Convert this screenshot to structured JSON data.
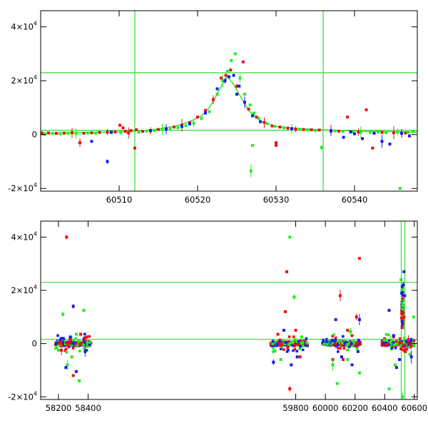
{
  "colors": {
    "red": "#ee1111",
    "green": "#22ee22",
    "blue": "#1a1aee",
    "frame": "#000000",
    "ref_line": "#33dd33"
  },
  "chart_data": [
    {
      "type": "scatter",
      "title": "",
      "xlabel": "",
      "ylabel": "",
      "xlim": [
        60500,
        60548
      ],
      "ylim": [
        -21000,
        46000
      ],
      "x_ticks": [
        60510,
        60520,
        60530,
        60540
      ],
      "y_ticks": [
        {
          "value": 40000,
          "base": "4×10",
          "exp": "4"
        },
        {
          "value": 20000,
          "base": "2×10",
          "exp": "4"
        },
        {
          "value": 0,
          "base": "0",
          "exp": ""
        },
        {
          "value": -20000,
          "base": "-2×10",
          "exp": "4"
        }
      ],
      "hlines": [
        23000,
        1600
      ],
      "vlines": [
        60512,
        60536
      ],
      "model_curve": {
        "x": [
          60500,
          60505,
          60510,
          60514,
          60517,
          60519,
          60520.5,
          60521.5,
          60522.5,
          60523.2,
          60523.8,
          60524.5,
          60525.5,
          60526.5,
          60528,
          60530,
          60533,
          60537,
          60542,
          60548
        ],
        "y": [
          500,
          700,
          1000,
          1700,
          3000,
          4800,
          7000,
          10000,
          15000,
          19000,
          21500,
          19000,
          14000,
          9000,
          5000,
          3000,
          2200,
          1600,
          1200,
          900
        ]
      },
      "series": [
        {
          "color": "red",
          "points": [
            [
              60500.2,
              500
            ],
            [
              60501,
              600
            ],
            [
              60502,
              450
            ],
            [
              60503,
              550
            ],
            [
              60504,
              700
            ],
            [
              60505.5,
              500
            ],
            [
              60506.5,
              650
            ],
            [
              60507.5,
              800
            ],
            [
              60508.5,
              900
            ],
            [
              60509.5,
              1000
            ],
            [
              60510.5,
              2500
            ],
            [
              60510.8,
              1200
            ],
            [
              60511.2,
              600
            ],
            [
              60511.5,
              1500
            ],
            [
              60512.2,
              1800
            ],
            [
              60513,
              1200
            ],
            [
              60514,
              1400
            ],
            [
              60515,
              1900
            ],
            [
              60516,
              2200
            ],
            [
              60517,
              2800
            ],
            [
              60518,
              3500
            ],
            [
              60519,
              4500
            ],
            [
              60520,
              6500
            ],
            [
              60521,
              9000
            ],
            [
              60522,
              13000
            ],
            [
              60523,
              21000
            ],
            [
              60523.6,
              22000
            ],
            [
              60524.2,
              24000
            ],
            [
              60525,
              18000
            ],
            [
              60525.8,
              27000
            ],
            [
              60526.5,
              9500
            ],
            [
              60527.5,
              6500
            ],
            [
              60528.5,
              4500
            ],
            [
              60529.5,
              3200
            ],
            [
              60530.5,
              2800
            ],
            [
              60531.5,
              2400
            ],
            [
              60532.5,
              2000
            ],
            [
              60533.5,
              1900
            ],
            [
              60534.5,
              1800
            ],
            [
              60535.5,
              1700
            ],
            [
              60537,
              1500
            ],
            [
              60538,
              1300
            ],
            [
              60539.1,
              6500
            ],
            [
              60539.5,
              1100
            ],
            [
              60540.5,
              900
            ],
            [
              60541.5,
              9200
            ],
            [
              60542.3,
              -5000
            ],
            [
              60543.5,
              800
            ],
            [
              60545,
              700
            ],
            [
              60546.5,
              600
            ],
            [
              60510.1,
              3500
            ],
            [
              60512,
              -5000
            ],
            [
              60505,
              -3000
            ],
            [
              60530,
              -4000
            ],
            [
              60530,
              -3000
            ]
          ]
        },
        {
          "color": "green",
          "points": [
            [
              60500.5,
              200
            ],
            [
              60501.5,
              400
            ],
            [
              60502.5,
              300
            ],
            [
              60503.5,
              500
            ],
            [
              60504.5,
              400
            ],
            [
              60506,
              600
            ],
            [
              60507,
              500
            ],
            [
              60509,
              700
            ],
            [
              60510.2,
              900
            ],
            [
              60512.5,
              900
            ],
            [
              60513.5,
              1300
            ],
            [
              60514.5,
              1500
            ],
            [
              60515.5,
              1900
            ],
            [
              60516.5,
              2200
            ],
            [
              60517.5,
              2600
            ],
            [
              60518.5,
              3300
            ],
            [
              60519.5,
              4200
            ],
            [
              60520.5,
              6000
            ],
            [
              60521.5,
              8500
            ],
            [
              60522.5,
              15000
            ],
            [
              60523.2,
              20000
            ],
            [
              60523.8,
              23500
            ],
            [
              60524.3,
              27500
            ],
            [
              60524.8,
              30000
            ],
            [
              60525.4,
              21000
            ],
            [
              60526,
              15000
            ],
            [
              60526.7,
              11000
            ],
            [
              60527.2,
              8000
            ],
            [
              60527.8,
              6000
            ],
            [
              60528.8,
              4200
            ],
            [
              60529.8,
              3100
            ],
            [
              60531,
              2500
            ],
            [
              60532,
              2200
            ],
            [
              60533,
              2000
            ],
            [
              60534,
              1800
            ],
            [
              60535,
              1500
            ],
            [
              60535.8,
              -4800
            ],
            [
              60537.5,
              1400
            ],
            [
              60538.5,
              1200
            ],
            [
              60539.8,
              1000
            ],
            [
              60540.8,
              900
            ],
            [
              60542,
              800
            ],
            [
              60543,
              1000
            ],
            [
              60544,
              700
            ],
            [
              60545.5,
              900
            ],
            [
              60546.8,
              800
            ],
            [
              60547.5,
              1100
            ],
            [
              60545.8,
              -20000
            ],
            [
              60526.8,
              -13500
            ],
            [
              60527,
              -4000
            ]
          ]
        },
        {
          "color": "blue",
          "points": [
            [
              60508.5,
              -10000
            ],
            [
              60506.5,
              -2500
            ],
            [
              60509,
              900
            ],
            [
              60514,
              1500
            ],
            [
              60516,
              2000
            ],
            [
              60519,
              4000
            ],
            [
              60521,
              8000
            ],
            [
              60522.5,
              17000
            ],
            [
              60523.5,
              20000
            ],
            [
              60524,
              21500
            ],
            [
              60524.6,
              22000
            ],
            [
              60525.3,
              18000
            ],
            [
              60526,
              12000
            ],
            [
              60527,
              7000
            ],
            [
              60528,
              4800
            ],
            [
              60532,
              2200
            ],
            [
              60537,
              1300
            ],
            [
              60538.6,
              -1000
            ],
            [
              60539.5,
              1000
            ],
            [
              60541,
              -1500
            ],
            [
              60543.5,
              -2500
            ],
            [
              60544.5,
              -3500
            ],
            [
              60540,
              300
            ],
            [
              60542.5,
              500
            ],
            [
              60546,
              500
            ],
            [
              60547,
              -500
            ],
            [
              60525,
              15000
            ],
            [
              60518,
              3000
            ]
          ]
        }
      ]
    },
    {
      "type": "scatter",
      "title": "",
      "xlabel": "",
      "ylabel": "",
      "xlim": [
        58080,
        60620
      ],
      "ylim": [
        -21000,
        46000
      ],
      "x_ticks": [
        58200,
        58400,
        59800,
        60000,
        60200,
        60400,
        60600
      ],
      "y_ticks": [
        {
          "value": 40000,
          "base": "4×10",
          "exp": "4"
        },
        {
          "value": 20000,
          "base": "2×10",
          "exp": "4"
        },
        {
          "value": 0,
          "base": "0",
          "exp": ""
        },
        {
          "value": -20000,
          "base": "-2×10",
          "exp": "4"
        }
      ],
      "hlines": [
        23000,
        1600
      ],
      "vlines": [
        60512,
        60536
      ],
      "season_ranges": [
        [
          58180,
          58420
        ],
        [
          59630,
          59880
        ],
        [
          59980,
          60240
        ],
        [
          60380,
          60600
        ]
      ],
      "series": [
        {
          "color": "red",
          "points": [
            [
              58255,
              40000
            ],
            [
              58300,
              -12000
            ],
            [
              58350,
              3500
            ],
            [
              58390,
              2500
            ],
            [
              58220,
              -2500
            ],
            [
              58280,
              1500
            ],
            [
              59730,
              12000
            ],
            [
              59740,
              27000
            ],
            [
              59760,
              -17000
            ],
            [
              59800,
              5000
            ],
            [
              59830,
              -5000
            ],
            [
              59680,
              3500
            ],
            [
              60100,
              18000
            ],
            [
              60120,
              -6000
            ],
            [
              60150,
              5000
            ],
            [
              60230,
              32000
            ],
            [
              60210,
              10000
            ],
            [
              60050,
              -6000
            ],
            [
              60180,
              3000
            ],
            [
              60520,
              6000
            ],
            [
              60530,
              10000
            ],
            [
              60540,
              -3000
            ],
            [
              60510,
              -2000
            ],
            [
              60460,
              2500
            ],
            [
              60560,
              1500
            ]
          ]
        },
        {
          "color": "green",
          "points": [
            [
              58230,
              11000
            ],
            [
              58320,
              3500
            ],
            [
              58370,
              12500
            ],
            [
              58340,
              -14000
            ],
            [
              58260,
              -8000
            ],
            [
              58290,
              -5000
            ],
            [
              58200,
              -2500
            ],
            [
              59760,
              40000
            ],
            [
              59790,
              17500
            ],
            [
              59700,
              -6000
            ],
            [
              59840,
              2500
            ],
            [
              59650,
              -3000
            ],
            [
              60050,
              -8000
            ],
            [
              60080,
              -15000
            ],
            [
              60150,
              -6000
            ],
            [
              60230,
              -11000
            ],
            [
              60170,
              4500
            ],
            [
              60510,
              24000
            ],
            [
              60530,
              14000
            ],
            [
              60595,
              10000
            ],
            [
              60440,
              500
            ],
            [
              60470,
              -8000
            ],
            [
              60430,
              -17000
            ],
            [
              60570,
              -4000
            ],
            [
              60520,
              -20000
            ]
          ]
        },
        {
          "color": "blue",
          "points": [
            [
              58300,
              14000
            ],
            [
              58250,
              -9000
            ],
            [
              58320,
              -10500
            ],
            [
              58280,
              2500
            ],
            [
              58380,
              -3000
            ],
            [
              59720,
              5000
            ],
            [
              59770,
              -8000
            ],
            [
              59810,
              -5000
            ],
            [
              59650,
              -7000
            ],
            [
              60070,
              9000
            ],
            [
              60110,
              -5000
            ],
            [
              60180,
              -8000
            ],
            [
              60230,
              9000
            ],
            [
              60220,
              -3000
            ],
            [
              60430,
              12500
            ],
            [
              60530,
              27000
            ],
            [
              60525,
              22000
            ],
            [
              60535,
              18000
            ],
            [
              60500,
              -6000
            ],
            [
              60480,
              -9000
            ],
            [
              60580,
              -5000
            ],
            [
              60460,
              3000
            ]
          ]
        }
      ]
    }
  ]
}
